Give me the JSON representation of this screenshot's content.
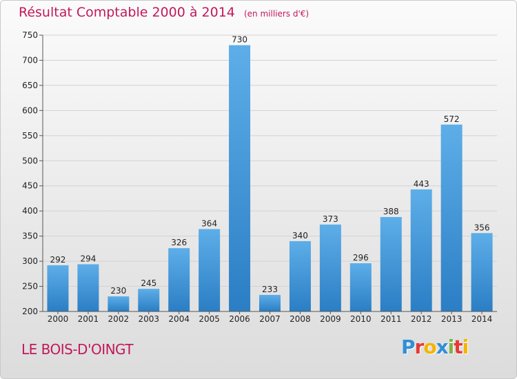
{
  "header": {
    "title": "Résultat Comptable 2000 à 2014",
    "subtitle": "(en milliers d'€)"
  },
  "footer": {
    "town": "LE BOIS-D'OINGT"
  },
  "logo": {
    "text": "Proxiti",
    "letters": [
      {
        "char": "P",
        "color": "#2f8fd8"
      },
      {
        "char": "r",
        "color": "#e53935"
      },
      {
        "char": "o",
        "color": "#f4b400"
      },
      {
        "char": "x",
        "color": "#2f8fd8"
      },
      {
        "char": "i",
        "color": "#7cb342"
      },
      {
        "char": "t",
        "color": "#e53935"
      },
      {
        "char": "i",
        "color": "#f4b400"
      }
    ]
  },
  "colors": {
    "bar_top": "#5daee8",
    "bar_bottom": "#2b7ec4",
    "accent": "#c2185b"
  },
  "chart_data": {
    "type": "bar",
    "title": "Résultat Comptable 2000 à 2014",
    "subtitle": "(en milliers d'€)",
    "categories": [
      "2000",
      "2001",
      "2002",
      "2003",
      "2004",
      "2005",
      "2006",
      "2007",
      "2008",
      "2009",
      "2010",
      "2011",
      "2012",
      "2013",
      "2014"
    ],
    "values": [
      292,
      294,
      230,
      245,
      326,
      364,
      730,
      233,
      340,
      373,
      296,
      388,
      443,
      572,
      356
    ],
    "ylim": [
      200,
      750
    ],
    "yticks": [
      200,
      250,
      300,
      350,
      400,
      450,
      500,
      550,
      600,
      650,
      700,
      750
    ],
    "grid": true
  }
}
